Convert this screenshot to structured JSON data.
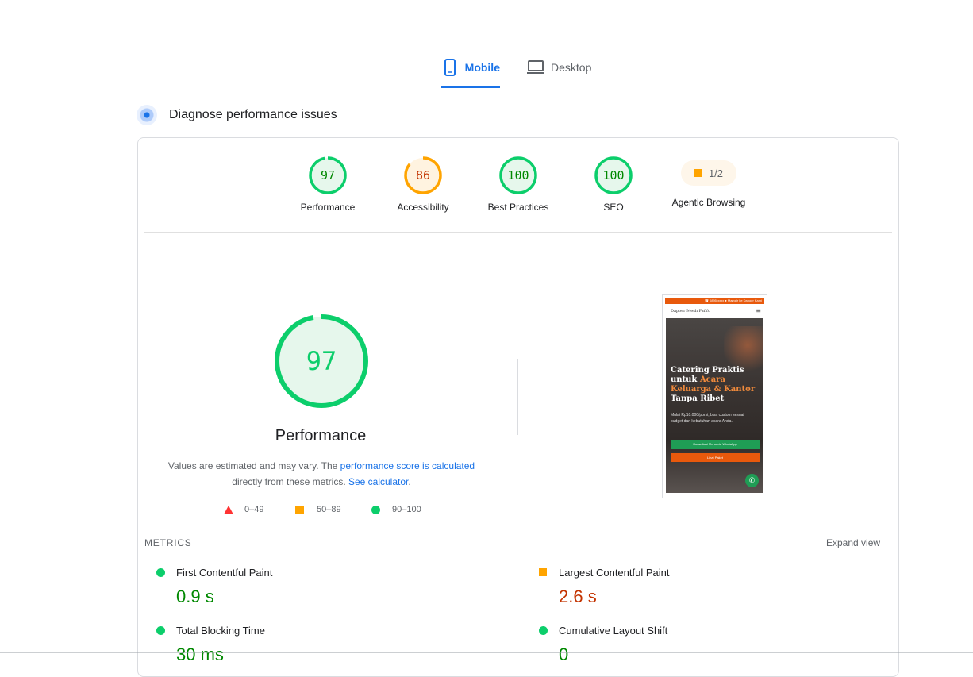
{
  "tabs": [
    {
      "label": "Mobile",
      "icon": "smartphone-icon",
      "selected": true
    },
    {
      "label": "Desktop",
      "icon": "laptop-icon",
      "selected": false
    }
  ],
  "section": {
    "title": "Diagnose performance issues",
    "icon": "diagnose-icon"
  },
  "categories": [
    {
      "label": "Performance",
      "score": "97",
      "value": 97,
      "color": "#0cce6b",
      "text_color": "#008800",
      "bg": "#e6f7ec"
    },
    {
      "label": "Accessibility",
      "score": "86",
      "value": 86,
      "color": "#ffa400",
      "text_color": "#c33300",
      "bg": "#fff3e0"
    },
    {
      "label": "Best Practices",
      "score": "100",
      "value": 100,
      "color": "#0cce6b",
      "text_color": "#008800",
      "bg": "#e6f7ec"
    },
    {
      "label": "SEO",
      "score": "100",
      "value": 100,
      "color": "#0cce6b",
      "text_color": "#008800",
      "bg": "#e6f7ec"
    },
    {
      "label": "Agentic Browsing",
      "score": "1/2",
      "color": "#ffa400"
    }
  ],
  "main_gauge": {
    "score": "97",
    "value": 97,
    "title": "Performance"
  },
  "description": {
    "text1": "Values are estimated and may vary. The ",
    "link1": "performance score is calculated",
    "text2": " directly from these metrics. ",
    "link2": "See calculator",
    "text3": "."
  },
  "legend": [
    {
      "range": "0–49",
      "shape": "triangle",
      "color": "#ff3333"
    },
    {
      "range": "50–89",
      "shape": "square",
      "color": "#ffa400"
    },
    {
      "range": "90–100",
      "shape": "circle",
      "color": "#0cce6b"
    }
  ],
  "screenshot": {
    "topstrip": "☎ 0895-xxxx   ● Mampir ke Dapoer Kami",
    "brand": "Dapoer Mesh Fafifu",
    "headline_pre": "Catering Praktis untuk ",
    "headline_hl": "Acara Keluarga & Kantor",
    "headline_post": " Tanpa Ribet",
    "subtext": "Mulai Rp10.000/porsi, bisa custom sesuai budget dan kebutuhan acara Anda.",
    "btn_whatsapp": "Konsultasi Menu via WhatsApp",
    "btn_order": "Lihat Paket"
  },
  "metrics": {
    "header": "METRICS",
    "expand": "Expand view",
    "items": [
      {
        "label": "First Contentful Paint",
        "value": "0.9 s",
        "rating": "good"
      },
      {
        "label": "Largest Contentful Paint",
        "value": "2.6 s",
        "rating": "average"
      },
      {
        "label": "Total Blocking Time",
        "value": "30 ms",
        "rating": "good"
      },
      {
        "label": "Cumulative Layout Shift",
        "value": "0",
        "rating": "good"
      }
    ]
  }
}
